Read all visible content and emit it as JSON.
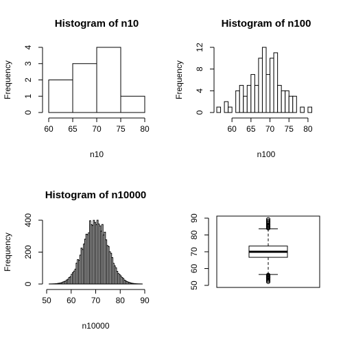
{
  "chart_data": [
    {
      "type": "bar",
      "title": "Histogram of n10",
      "xlabel": "n10",
      "ylabel": "Frequency",
      "bin_edges": [
        60,
        65,
        70,
        75,
        80
      ],
      "values": [
        2,
        3,
        4,
        1
      ],
      "xticks": [
        60,
        65,
        70,
        75,
        80
      ],
      "yticks": [
        0,
        1,
        2,
        3,
        4
      ],
      "xlim": [
        60,
        80
      ],
      "ylim": [
        0,
        4
      ]
    },
    {
      "type": "bar",
      "title": "Histogram of n100",
      "xlabel": "n100",
      "ylabel": "Frequency",
      "bin_width": 1,
      "bin_edges": [
        56,
        57,
        58,
        59,
        60,
        61,
        62,
        63,
        64,
        65,
        66,
        67,
        68,
        69,
        70,
        71,
        72,
        73,
        74,
        75,
        76,
        77,
        78,
        79,
        80,
        81,
        82
      ],
      "values": [
        1,
        0,
        2,
        1,
        0,
        4,
        5,
        3,
        5,
        7,
        5,
        10,
        12,
        7,
        10,
        11,
        5,
        4,
        4,
        3,
        3,
        0,
        1,
        0,
        1,
        0
      ],
      "xticks": [
        60,
        65,
        70,
        75,
        80
      ],
      "yticks": [
        0,
        4,
        8,
        12
      ],
      "xlim": [
        56,
        82
      ],
      "ylim": [
        0,
        12
      ]
    },
    {
      "type": "bar",
      "title": "Histogram of n10000",
      "xlabel": "n10000",
      "ylabel": "Frequency",
      "bin_width": 0.5,
      "bin_range": [
        51,
        89
      ],
      "distribution_mean": 70,
      "distribution_sd": 5,
      "peak_count": 400,
      "xticks": [
        50,
        60,
        70,
        80,
        90
      ],
      "yticks": [
        0,
        200,
        400
      ],
      "xlim": [
        50,
        90
      ],
      "ylim": [
        0,
        400
      ]
    },
    {
      "type": "boxplot",
      "median": 70,
      "q1": 66.7,
      "q3": 73.4,
      "whisker_low": 56.5,
      "whisker_high": 83.6,
      "outliers_low": [
        56.2,
        55.8,
        55.3,
        54.9,
        54.5,
        54.0,
        53.4,
        52.8,
        52.1
      ],
      "outliers_high": [
        84.0,
        84.5,
        85.0,
        85.5,
        86.0,
        86.6,
        87.2,
        87.8,
        88.5,
        89.3
      ],
      "yticks": [
        50,
        60,
        70,
        80,
        90
      ],
      "ylim": [
        50,
        90
      ]
    }
  ]
}
